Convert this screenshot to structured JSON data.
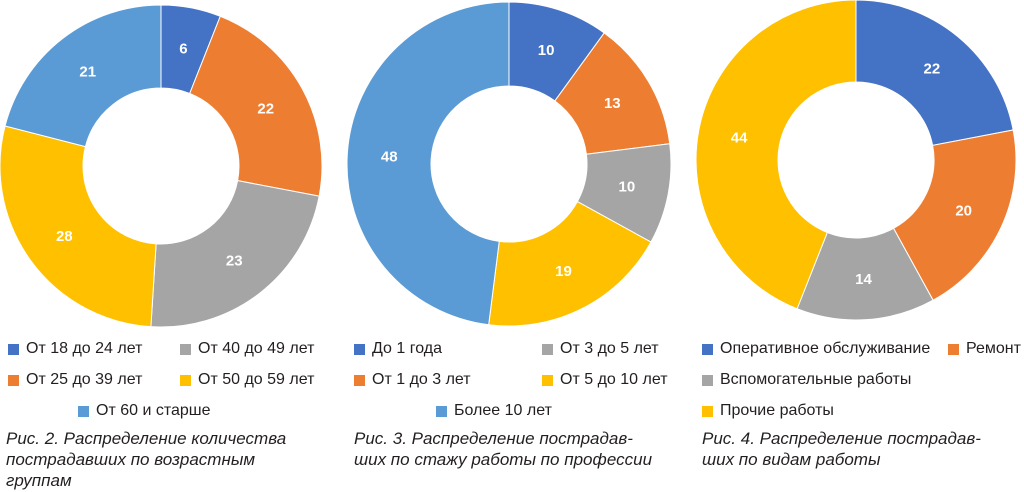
{
  "colors": {
    "dark_blue": "#4472c4",
    "orange": "#ed7d31",
    "gray": "#a5a5a5",
    "yellow": "#ffc000",
    "light_blue": "#5b9bd5",
    "label": "#ffffff"
  },
  "chart_data": [
    {
      "type": "pie",
      "title": "",
      "categories": [
        "От 18 до 24 лет",
        "От 25 до 39 лет",
        "От 40 до 49 лет",
        "От 50 до 59 лет",
        "От 60 и старше"
      ],
      "values": [
        6,
        22,
        23,
        28,
        21
      ],
      "slice_colors": [
        "#4472c4",
        "#ed7d31",
        "#a5a5a5",
        "#ffc000",
        "#5b9bd5"
      ],
      "legend_order": [
        0,
        2,
        1,
        3,
        4
      ],
      "legend_placement": "bottom",
      "caption": "Рис. 2. Распределение количества\nпострадавших по возрастным\nгруппам"
    },
    {
      "type": "pie",
      "title": "",
      "categories": [
        "До 1 года",
        "От 1 до 3 лет",
        "От 3 до 5 лет",
        "От 5 до 10 лет",
        "Более 10 лет"
      ],
      "values": [
        10,
        13,
        10,
        19,
        48
      ],
      "slice_colors": [
        "#4472c4",
        "#ed7d31",
        "#a5a5a5",
        "#ffc000",
        "#5b9bd5"
      ],
      "legend_order": [
        0,
        2,
        1,
        3,
        4
      ],
      "legend_placement": "bottom",
      "caption": "Рис. 3. Распределение пострадав-\nших по стажу работы по профессии"
    },
    {
      "type": "pie",
      "title": "",
      "categories": [
        "Оперативное обслуживание",
        "Ремонт",
        "Вспомогательные работы",
        "Прочие работы"
      ],
      "values": [
        22,
        20,
        14,
        44
      ],
      "slice_colors": [
        "#4472c4",
        "#ed7d31",
        "#a5a5a5",
        "#ffc000"
      ],
      "legend_order": [
        0,
        1,
        2,
        3
      ],
      "legend_placement": "bottom",
      "caption": "Рис. 4. Распределение пострадав-\nших по видам работы"
    }
  ]
}
